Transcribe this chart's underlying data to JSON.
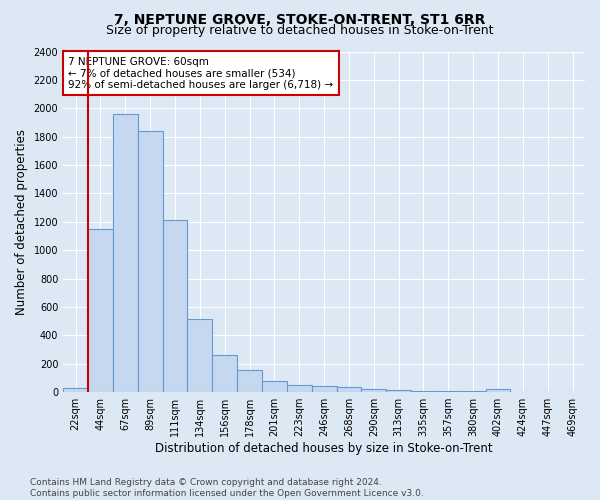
{
  "title": "7, NEPTUNE GROVE, STOKE-ON-TRENT, ST1 6RR",
  "subtitle": "Size of property relative to detached houses in Stoke-on-Trent",
  "xlabel": "Distribution of detached houses by size in Stoke-on-Trent",
  "ylabel": "Number of detached properties",
  "categories": [
    "22sqm",
    "44sqm",
    "67sqm",
    "89sqm",
    "111sqm",
    "134sqm",
    "156sqm",
    "178sqm",
    "201sqm",
    "223sqm",
    "246sqm",
    "268sqm",
    "290sqm",
    "313sqm",
    "335sqm",
    "357sqm",
    "380sqm",
    "402sqm",
    "424sqm",
    "447sqm",
    "469sqm"
  ],
  "values": [
    30,
    1150,
    1960,
    1840,
    1210,
    515,
    265,
    155,
    80,
    50,
    45,
    40,
    20,
    15,
    10,
    5,
    5,
    20,
    0,
    0,
    0
  ],
  "bar_color": "#c5d8f0",
  "bar_edge_color": "#6699cc",
  "vline_pos": 0.5,
  "vline_color": "#cc0000",
  "annotation_text": "7 NEPTUNE GROVE: 60sqm\n← 7% of detached houses are smaller (534)\n92% of semi-detached houses are larger (6,718) →",
  "annotation_color": "#cc0000",
  "ylim": [
    0,
    2400
  ],
  "yticks": [
    0,
    200,
    400,
    600,
    800,
    1000,
    1200,
    1400,
    1600,
    1800,
    2000,
    2200,
    2400
  ],
  "bg_color": "#dde8f5",
  "grid_color": "#ffffff",
  "title_fontsize": 10,
  "subtitle_fontsize": 9,
  "axis_label_fontsize": 8.5,
  "tick_fontsize": 7,
  "annotation_fontsize": 7.5,
  "footer_fontsize": 6.5,
  "footer_line1": "Contains HM Land Registry data © Crown copyright and database right 2024.",
  "footer_line2": "Contains public sector information licensed under the Open Government Licence v3.0."
}
